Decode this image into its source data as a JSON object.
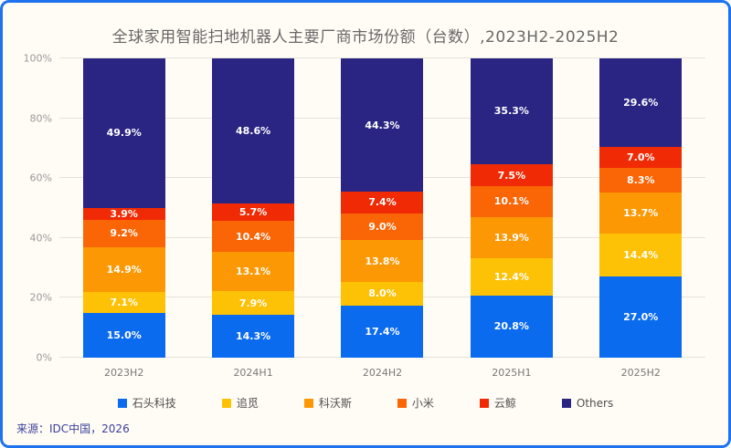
{
  "frame": {
    "border_color": "#1d72f0",
    "background_color": "#fffcf5"
  },
  "source": "来源：IDC中国，2026",
  "chart_data": {
    "type": "bar",
    "stacked": true,
    "title": "全球家用智能扫地机器人主要厂商市场份额（台数）,2023H2-2025H2",
    "categories": [
      "2023H2",
      "2024H1",
      "2024H2",
      "2025H1",
      "2025H2"
    ],
    "series": [
      {
        "name": "石头科技",
        "color": "#0b6bef",
        "values": [
          15.0,
          14.3,
          17.4,
          20.8,
          27.0
        ]
      },
      {
        "name": "追觅",
        "color": "#fdc105",
        "values": [
          7.1,
          7.9,
          8.0,
          12.4,
          14.4
        ]
      },
      {
        "name": "科沃斯",
        "color": "#fc9803",
        "values": [
          14.9,
          13.1,
          13.8,
          13.9,
          13.7
        ]
      },
      {
        "name": "小米",
        "color": "#fa6505",
        "values": [
          9.2,
          10.4,
          9.0,
          10.1,
          8.3
        ]
      },
      {
        "name": "云鲸",
        "color": "#f02a05",
        "values": [
          3.9,
          5.7,
          7.4,
          7.5,
          7.0
        ]
      },
      {
        "name": "Others",
        "color": "#2a2583",
        "values": [
          49.9,
          48.6,
          44.3,
          35.3,
          29.6
        ]
      }
    ],
    "y_ticks": [
      "0%",
      "20%",
      "40%",
      "60%",
      "80%",
      "100%"
    ],
    "ylim": [
      0,
      100
    ],
    "grid": true,
    "legend_position": "bottom",
    "value_suffix": "%",
    "value_decimals": 1
  }
}
